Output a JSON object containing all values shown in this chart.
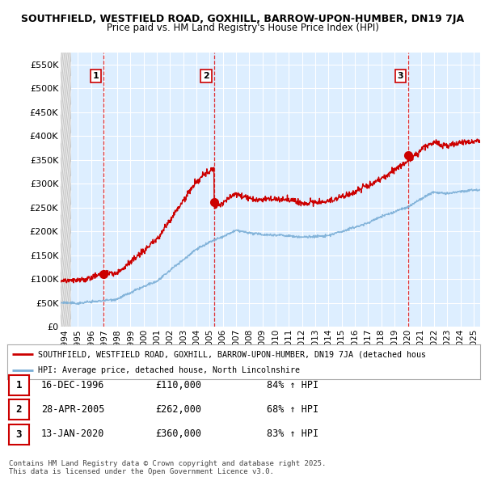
{
  "title_line1": "SOUTHFIELD, WESTFIELD ROAD, GOXHILL, BARROW-UPON-HUMBER, DN19 7JA",
  "title_line2": "Price paid vs. HM Land Registry's House Price Index (HPI)",
  "ylim": [
    0,
    575000
  ],
  "yticks": [
    0,
    50000,
    100000,
    150000,
    200000,
    250000,
    300000,
    350000,
    400000,
    450000,
    500000,
    550000
  ],
  "ytick_labels": [
    "£0",
    "£50K",
    "£100K",
    "£150K",
    "£200K",
    "£250K",
    "£300K",
    "£350K",
    "£400K",
    "£450K",
    "£500K",
    "£550K"
  ],
  "x_start": 1993.7,
  "x_end": 2025.5,
  "xtick_years": [
    1994,
    1995,
    1996,
    1997,
    1998,
    1999,
    2000,
    2001,
    2002,
    2003,
    2004,
    2005,
    2006,
    2007,
    2008,
    2009,
    2010,
    2011,
    2012,
    2013,
    2014,
    2015,
    2016,
    2017,
    2018,
    2019,
    2020,
    2021,
    2022,
    2023,
    2024,
    2025
  ],
  "sale_dates": [
    1996.96,
    2005.32,
    2020.04
  ],
  "sale_prices": [
    110000,
    262000,
    360000
  ],
  "sale_labels": [
    "1",
    "2",
    "3"
  ],
  "red_line_color": "#cc0000",
  "blue_line_color": "#7aaed6",
  "plot_bg_color": "#ddeeff",
  "grid_color": "#ffffff",
  "hatch_bg_color": "#c8c8c8",
  "legend_entries": [
    "SOUTHFIELD, WESTFIELD ROAD, GOXHILL, BARROW-UPON-HUMBER, DN19 7JA (detached hous",
    "HPI: Average price, detached house, North Lincolnshire"
  ],
  "table_data": [
    {
      "label": "1",
      "date": "16-DEC-1996",
      "price": "£110,000",
      "hpi": "84% ↑ HPI"
    },
    {
      "label": "2",
      "date": "28-APR-2005",
      "price": "£262,000",
      "hpi": "68% ↑ HPI"
    },
    {
      "label": "3",
      "date": "13-JAN-2020",
      "price": "£360,000",
      "hpi": "83% ↑ HPI"
    }
  ],
  "footnote": "Contains HM Land Registry data © Crown copyright and database right 2025.\nThis data is licensed under the Open Government Licence v3.0."
}
